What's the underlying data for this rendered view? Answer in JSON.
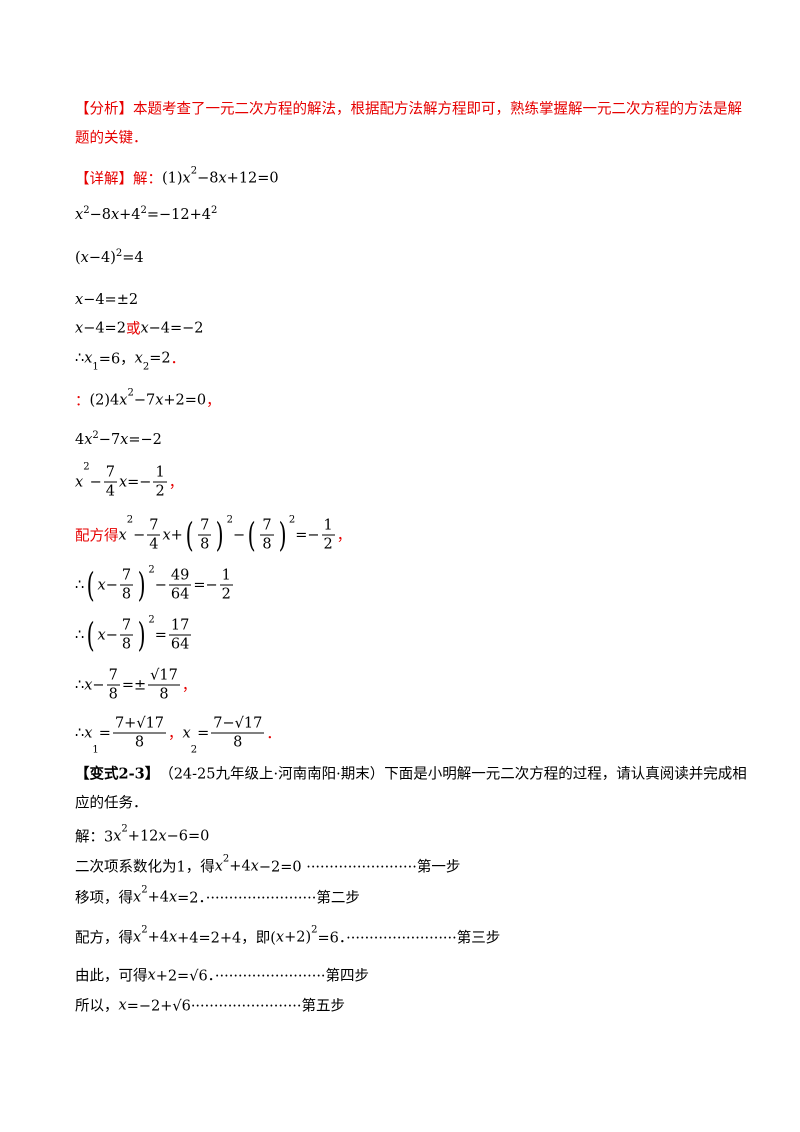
{
  "lines": [
    [
      {
        "r": "【分析】本题考查了一元二次方程的解法，根据配方法解方程即可，熟练掌握解一元二次方程的方法是解"
      }
    ],
    [
      {
        "r": "题的关键．"
      }
    ],
    [
      {
        "r": "【详解】解："
      },
      "(1)",
      {
        "i": "x"
      },
      {
        "sup": "2"
      },
      "−8",
      {
        "i": "x"
      },
      "+12=0"
    ],
    [
      {
        "i": "x"
      },
      {
        "sup": "2"
      },
      "−8",
      {
        "i": "x"
      },
      "+4",
      {
        "sup": "2"
      },
      "=−12+4",
      {
        "sup": "2"
      }
    ],
    [
      "(",
      {
        "i": "x"
      },
      "−4)",
      {
        "sup": "2"
      },
      "=4"
    ],
    [
      {
        "i": "x"
      },
      "−4=±2"
    ],
    [
      {
        "i": "x"
      },
      "−4=2",
      {
        "r": "或"
      },
      {
        "i": "x"
      },
      "−4=−2"
    ],
    [
      "∴",
      {
        "i": "x"
      },
      {
        "sub": "1"
      },
      "=6，",
      {
        "i": "x"
      },
      {
        "sub": "2"
      },
      "=2",
      {
        "r": "．"
      }
    ],
    [
      {
        "r": "："
      },
      "(2)4",
      {
        "i": "x"
      },
      {
        "sup": "2"
      },
      "−7",
      {
        "i": "x"
      },
      "+2=0",
      {
        "r": "，"
      }
    ],
    [
      "4",
      {
        "i": "x"
      },
      {
        "sup": "2"
      },
      "−7",
      {
        "i": "x"
      },
      "=−2"
    ],
    [
      {
        "i": "x"
      },
      {
        "sup": "2"
      },
      "−",
      {
        "frac": [
          "7",
          "4"
        ]
      },
      {
        "i": "x"
      },
      "=−",
      {
        "frac": [
          "1",
          "2"
        ]
      },
      {
        "r": "，"
      }
    ],
    [
      {
        "r": "配方得"
      },
      {
        "i": "x"
      },
      {
        "sup": "2"
      },
      "−",
      {
        "frac": [
          "7",
          "4"
        ]
      },
      {
        "i": "x"
      },
      "+",
      {
        "bl": "("
      },
      {
        "frac": [
          "7",
          "8"
        ]
      },
      {
        "bl": ")"
      },
      {
        "sup": "2"
      },
      "−",
      {
        "bl": "("
      },
      {
        "frac": [
          "7",
          "8"
        ]
      },
      {
        "bl": ")"
      },
      {
        "sup": "2"
      },
      "=−",
      {
        "frac": [
          "1",
          "2"
        ]
      },
      {
        "r": "，"
      }
    ],
    [
      "∴",
      {
        "bl": "("
      },
      {
        "i": "x"
      },
      "−",
      {
        "frac": [
          "7",
          "8"
        ]
      },
      {
        "bl": ")"
      },
      {
        "sup": "2"
      },
      "−",
      {
        "frac": [
          "49",
          "64"
        ]
      },
      "=−",
      {
        "frac": [
          "1",
          "2"
        ]
      }
    ],
    [
      "∴",
      {
        "bl": "("
      },
      {
        "i": "x"
      },
      "−",
      {
        "frac": [
          "7",
          "8"
        ]
      },
      {
        "bl": ")"
      },
      {
        "sup": "2"
      },
      "=",
      {
        "frac": [
          "17",
          "64"
        ]
      }
    ],
    [
      "∴",
      {
        "i": "x"
      },
      "−",
      {
        "frac": [
          "7",
          "8"
        ]
      },
      "=±",
      {
        "frac": [
          "√17",
          "8"
        ]
      },
      {
        "r": "，"
      }
    ],
    [
      "∴",
      {
        "i": "x"
      },
      {
        "sub": "1"
      },
      "=",
      {
        "frac": [
          "7+√17",
          "8"
        ]
      },
      {
        "r": "，"
      },
      {
        "i": "x"
      },
      {
        "sub": "2"
      },
      "=",
      {
        "frac": [
          "7−√17",
          "8"
        ]
      },
      {
        "r": "．"
      }
    ],
    [
      {
        "b": "【变式2-3】"
      },
      "（24-25九年级上·河南南阳·期末）下面是小明解一元二次方程的过程，请认真阅读并完成相"
    ],
    [
      "应的任务．"
    ],
    [
      "解：3",
      {
        "i": "x"
      },
      {
        "sup": "2"
      },
      "+12",
      {
        "i": "x"
      },
      "−6=0"
    ],
    [
      "二次项系数化为1，得",
      {
        "i": "x"
      },
      {
        "sup": "2"
      },
      "+4",
      {
        "i": "x"
      },
      "−2=0 ························第一步"
    ],
    [
      "移项，得",
      {
        "i": "x"
      },
      {
        "sup": "2"
      },
      "+4",
      {
        "i": "x"
      },
      "=2．························第二步"
    ],
    [
      "配方，得",
      {
        "i": "x"
      },
      {
        "sup": "2"
      },
      "+4",
      {
        "i": "x"
      },
      "+4=2+4，即(",
      {
        "i": "x"
      },
      "+2)",
      {
        "sup": "2"
      },
      "=6．························第三步"
    ],
    [
      "由此，可得",
      {
        "i": "x"
      },
      "+2=√6．························第四步"
    ],
    [
      "所以，",
      {
        "i": "x"
      },
      "=−2+√6························第五步"
    ]
  ]
}
